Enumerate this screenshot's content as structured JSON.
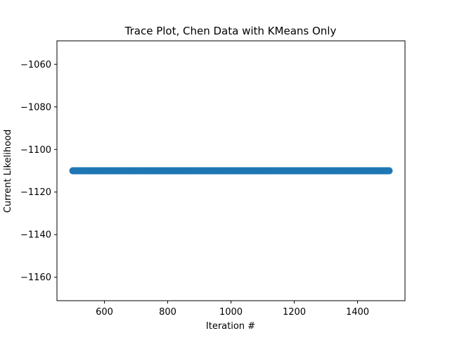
{
  "chart_data": {
    "type": "scatter",
    "title": "Trace Plot, Chen Data with KMeans Only",
    "xlabel": "Iteration #",
    "ylabel": "Current Likelihood",
    "xlim": [
      450,
      1550
    ],
    "ylim": [
      -1171,
      -1049
    ],
    "x_ticks": [
      600,
      800,
      1000,
      1200,
      1400
    ],
    "x_tick_labels": [
      "600",
      "800",
      "1000",
      "1200",
      "1400"
    ],
    "y_ticks": [
      -1060,
      -1080,
      -1100,
      -1120,
      -1140,
      -1160
    ],
    "y_tick_labels": [
      "−1060",
      "−1080",
      "−1100",
      "−1120",
      "−1140",
      "−1160"
    ],
    "grid": false,
    "series": [
      {
        "x_start": 500,
        "x_end": 1500,
        "x_step": 1,
        "y_constant": -1110,
        "color": "#1f77b4"
      }
    ]
  }
}
